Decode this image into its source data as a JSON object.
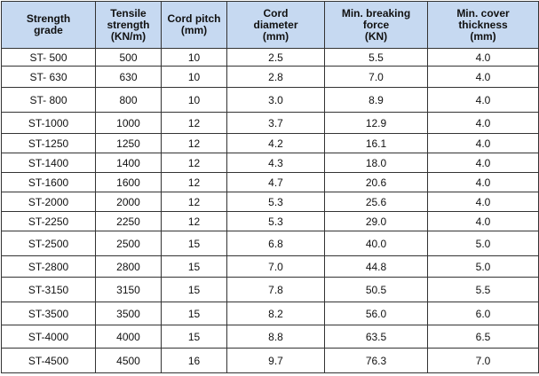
{
  "table": {
    "header": [
      "Strength\ngrade",
      "Tensile\nstrength\n(KN/m)",
      "Cord pitch\n(mm)",
      "Cord\ndiameter\n(mm)",
      "Min. breaking\nforce\n(KN)",
      "Min. cover\nthickness\n(mm)"
    ],
    "rows": [
      [
        "ST- 500",
        "500",
        "10",
        "2.5",
        "5.5",
        "4.0"
      ],
      [
        "ST- 630",
        "630",
        "10",
        "2.8",
        "7.0",
        "4.0"
      ],
      [
        "ST- 800",
        "800",
        "10",
        "3.0",
        "8.9",
        "4.0"
      ],
      [
        "ST-1000",
        "1000",
        "12",
        "3.7",
        "12.9",
        "4.0"
      ],
      [
        "ST-1250",
        "1250",
        "12",
        "4.2",
        "16.1",
        "4.0"
      ],
      [
        "ST-1400",
        "1400",
        "12",
        "4.3",
        "18.0",
        "4.0"
      ],
      [
        "ST-1600",
        "1600",
        "12",
        "4.7",
        "20.6",
        "4.0"
      ],
      [
        "ST-2000",
        "2000",
        "12",
        "5.3",
        "25.6",
        "4.0"
      ],
      [
        "ST-2250",
        "2250",
        "12",
        "5.3",
        "29.0",
        "4.0"
      ],
      [
        "ST-2500",
        "2500",
        "15",
        "6.8",
        "40.0",
        "5.0"
      ],
      [
        "ST-2800",
        "2800",
        "15",
        "7.0",
        "44.8",
        "5.0"
      ],
      [
        "ST-3150",
        "3150",
        "15",
        "7.8",
        "50.5",
        "5.5"
      ],
      [
        "ST-3500",
        "3500",
        "15",
        "8.2",
        "56.0",
        "6.0"
      ],
      [
        "ST-4000",
        "4000",
        "15",
        "8.8",
        "63.5",
        "6.5"
      ],
      [
        "ST-4500",
        "4500",
        "16",
        "9.7",
        "76.3",
        "7.0"
      ]
    ]
  }
}
